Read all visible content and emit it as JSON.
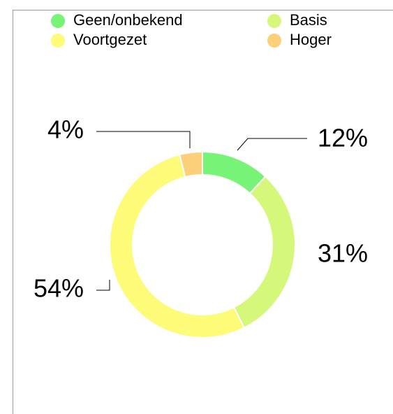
{
  "chart_data": {
    "type": "donut",
    "categories": [
      "Geen/onbekend",
      "Basis",
      "Voortgezet",
      "Hoger"
    ],
    "values": [
      12,
      31,
      54,
      4
    ],
    "value_labels": [
      "12%",
      "31%",
      "54%",
      "4%"
    ],
    "colors": [
      "#77f477",
      "#d6f87a",
      "#fdfb78",
      "#fcd078"
    ],
    "legend": "top"
  }
}
